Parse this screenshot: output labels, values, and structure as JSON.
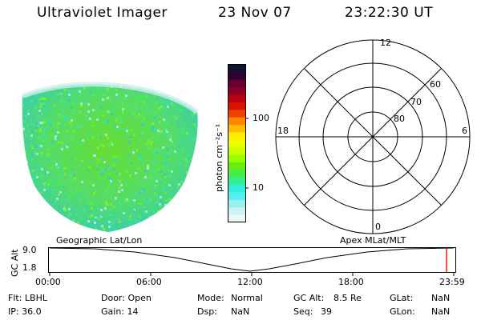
{
  "header": {
    "title": "Ultraviolet Imager",
    "date": "23 Nov 07",
    "time": "23:22:30 UT"
  },
  "colorbar": {
    "label": "photon cm⁻²s⁻¹",
    "ticks": [
      "100",
      "10"
    ],
    "colors": [
      "#111133",
      "#330033",
      "#660033",
      "#880022",
      "#bb0011",
      "#dd1100",
      "#ee4400",
      "#ff8800",
      "#ffbb00",
      "#ffee00",
      "#eeff00",
      "#ccff00",
      "#99ff00",
      "#66ee11",
      "#44ee44",
      "#33ee99",
      "#33eedd",
      "#55eeee",
      "#99eeee",
      "#ccf2f2",
      "#e8f8f8"
    ]
  },
  "polar": {
    "mlt_labels": {
      "top": "12",
      "left": "18",
      "right": "6",
      "bottom": "0"
    },
    "lat_labels": [
      "60",
      "70",
      "80"
    ]
  },
  "timeline": {
    "ylabel": "GC Alt",
    "ymax": "9.0",
    "ymin": "1.8",
    "left_title": "Geographic Lat/Lon",
    "right_title": "Apex MLat/MLT",
    "ticks": [
      "00:00",
      "06:00",
      "12:00",
      "18:00",
      "23:59"
    ]
  },
  "info": {
    "flt": "Flt: LBHL",
    "ip": "IP: 36.0",
    "door": "Door: Open",
    "gain": "Gain: 14",
    "mode_label": "Mode:",
    "mode_value": "Normal",
    "dsp_label": "Dsp:",
    "dsp_value": "NaN",
    "gcalt_label": "GC Alt:",
    "gcalt_value": "8.5 Re",
    "seq_label": "Seq:",
    "seq_value": "39",
    "glat_label": "GLat:",
    "glat_value": "NaN",
    "glon_label": "GLon:",
    "glon_value": "NaN"
  }
}
